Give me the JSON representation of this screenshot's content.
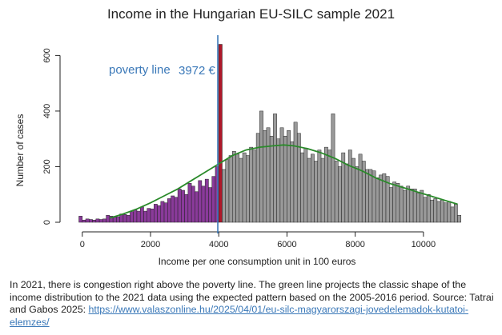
{
  "colors": {
    "below_bar": "#8a3a9a",
    "above_bar": "#9a9a9a",
    "bar_stroke": "#222222",
    "peak_bar": "#b0182a",
    "poverty_line": "#3a78b8",
    "fit_line": "#2a8a2a"
  },
  "chart_data": {
    "type": "bar",
    "title": "Income in the Hungarian EU-SILC sample 2021",
    "xlabel": "Income per one consumption unit in 100 euros",
    "ylabel": "Number of cases",
    "xlim": [
      -300,
      11200
    ],
    "ylim": [
      0,
      650
    ],
    "xticks": [
      0,
      2000,
      4000,
      6000,
      8000,
      10000
    ],
    "yticks": [
      0,
      200,
      400,
      600
    ],
    "bin_width": 100,
    "bin_starts": [
      -100,
      0,
      100,
      200,
      300,
      400,
      500,
      600,
      700,
      800,
      900,
      1000,
      1100,
      1200,
      1300,
      1400,
      1500,
      1600,
      1700,
      1800,
      1900,
      2000,
      2100,
      2200,
      2300,
      2400,
      2500,
      2600,
      2700,
      2800,
      2900,
      3000,
      3100,
      3200,
      3300,
      3400,
      3500,
      3600,
      3700,
      3800,
      3900,
      4000,
      4100,
      4200,
      4300,
      4400,
      4500,
      4600,
      4700,
      4800,
      4900,
      5000,
      5100,
      5200,
      5300,
      5400,
      5500,
      5600,
      5700,
      5800,
      5900,
      6000,
      6100,
      6200,
      6300,
      6400,
      6500,
      6600,
      6700,
      6800,
      6900,
      7000,
      7100,
      7200,
      7300,
      7400,
      7500,
      7600,
      7700,
      7800,
      7900,
      8000,
      8100,
      8200,
      8300,
      8400,
      8500,
      8600,
      8700,
      8800,
      8900,
      9000,
      9100,
      9200,
      9300,
      9400,
      9500,
      9600,
      9700,
      9800,
      9900,
      10000,
      10100,
      10200,
      10300,
      10400,
      10500,
      10600,
      10700,
      10800,
      10900,
      11000
    ],
    "counts": [
      22,
      8,
      12,
      10,
      8,
      12,
      10,
      12,
      25,
      22,
      18,
      20,
      30,
      28,
      25,
      38,
      45,
      40,
      55,
      40,
      50,
      48,
      65,
      60,
      75,
      70,
      85,
      95,
      90,
      120,
      115,
      100,
      140,
      130,
      110,
      150,
      130,
      155,
      125,
      165,
      200,
      640,
      190,
      225,
      240,
      255,
      245,
      230,
      250,
      240,
      270,
      260,
      320,
      400,
      330,
      340,
      310,
      390,
      300,
      340,
      310,
      330,
      290,
      360,
      320,
      250,
      265,
      230,
      245,
      220,
      260,
      230,
      270,
      260,
      390,
      220,
      200,
      250,
      210,
      260,
      230,
      200,
      245,
      220,
      190,
      190,
      185,
      160,
      170,
      175,
      165,
      125,
      145,
      140,
      130,
      115,
      130,
      120,
      120,
      105,
      115,
      90,
      100,
      80,
      85,
      75,
      80,
      70,
      75,
      55,
      65,
      25
    ],
    "fit_curve": {
      "name": "projected classic shape",
      "x": [
        800,
        1200,
        1600,
        2000,
        2400,
        2800,
        3200,
        3600,
        4000,
        4400,
        4800,
        5200,
        5600,
        5900,
        6200,
        6600,
        7000,
        7400,
        7800,
        8200,
        8600,
        9000,
        9400,
        9800,
        10200,
        10600,
        11000
      ],
      "y": [
        15,
        30,
        48,
        70,
        95,
        120,
        150,
        180,
        210,
        240,
        260,
        270,
        275,
        278,
        275,
        265,
        250,
        230,
        205,
        185,
        160,
        140,
        125,
        110,
        95,
        80,
        65
      ]
    },
    "poverty_line": {
      "x": 3972,
      "label": "poverty line",
      "value_label": "3972 €"
    },
    "grid": false,
    "legend": "none"
  },
  "caption": {
    "text": "In 2021, there is congestion right above the poverty line. The green line projects the classic shape of the income distribution to the 2021 data using the expected pattern based on the 2005-2016 period. Source: Tatrai and Gabos 2025: ",
    "link": "https://www.valaszonline.hu/2025/04/01/eu-silc-magyarorszagi-jovedelemadok-kutatoi-elemzes/"
  }
}
